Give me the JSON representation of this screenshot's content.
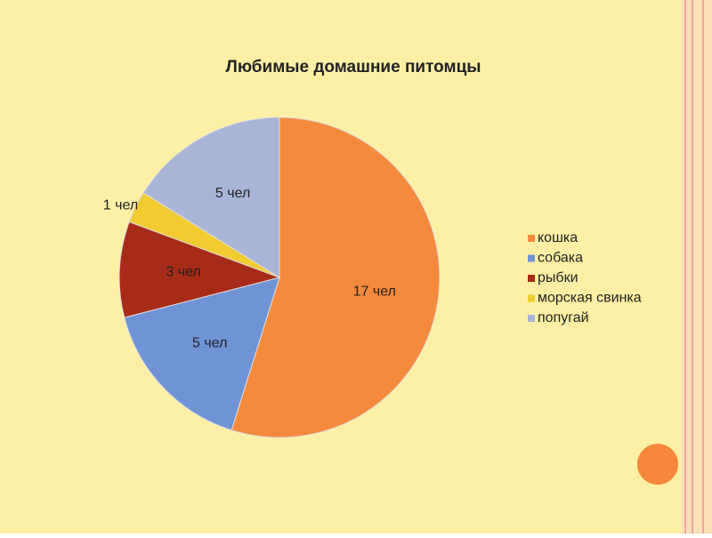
{
  "chart_data": {
    "type": "pie",
    "title": "Любимые домашние питомцы",
    "categories": [
      "кошка",
      "собака",
      "рыбки",
      "морская свинка",
      "попугай"
    ],
    "values": [
      17,
      5,
      3,
      1,
      5
    ],
    "value_labels": [
      "17 чел",
      "5 чел",
      "3 чел",
      "1 чел",
      "5 чел"
    ],
    "colors": [
      "#f58a3c",
      "#7093d6",
      "#a82a18",
      "#f0cc30",
      "#a8b4d8"
    ],
    "legend": "right"
  }
}
